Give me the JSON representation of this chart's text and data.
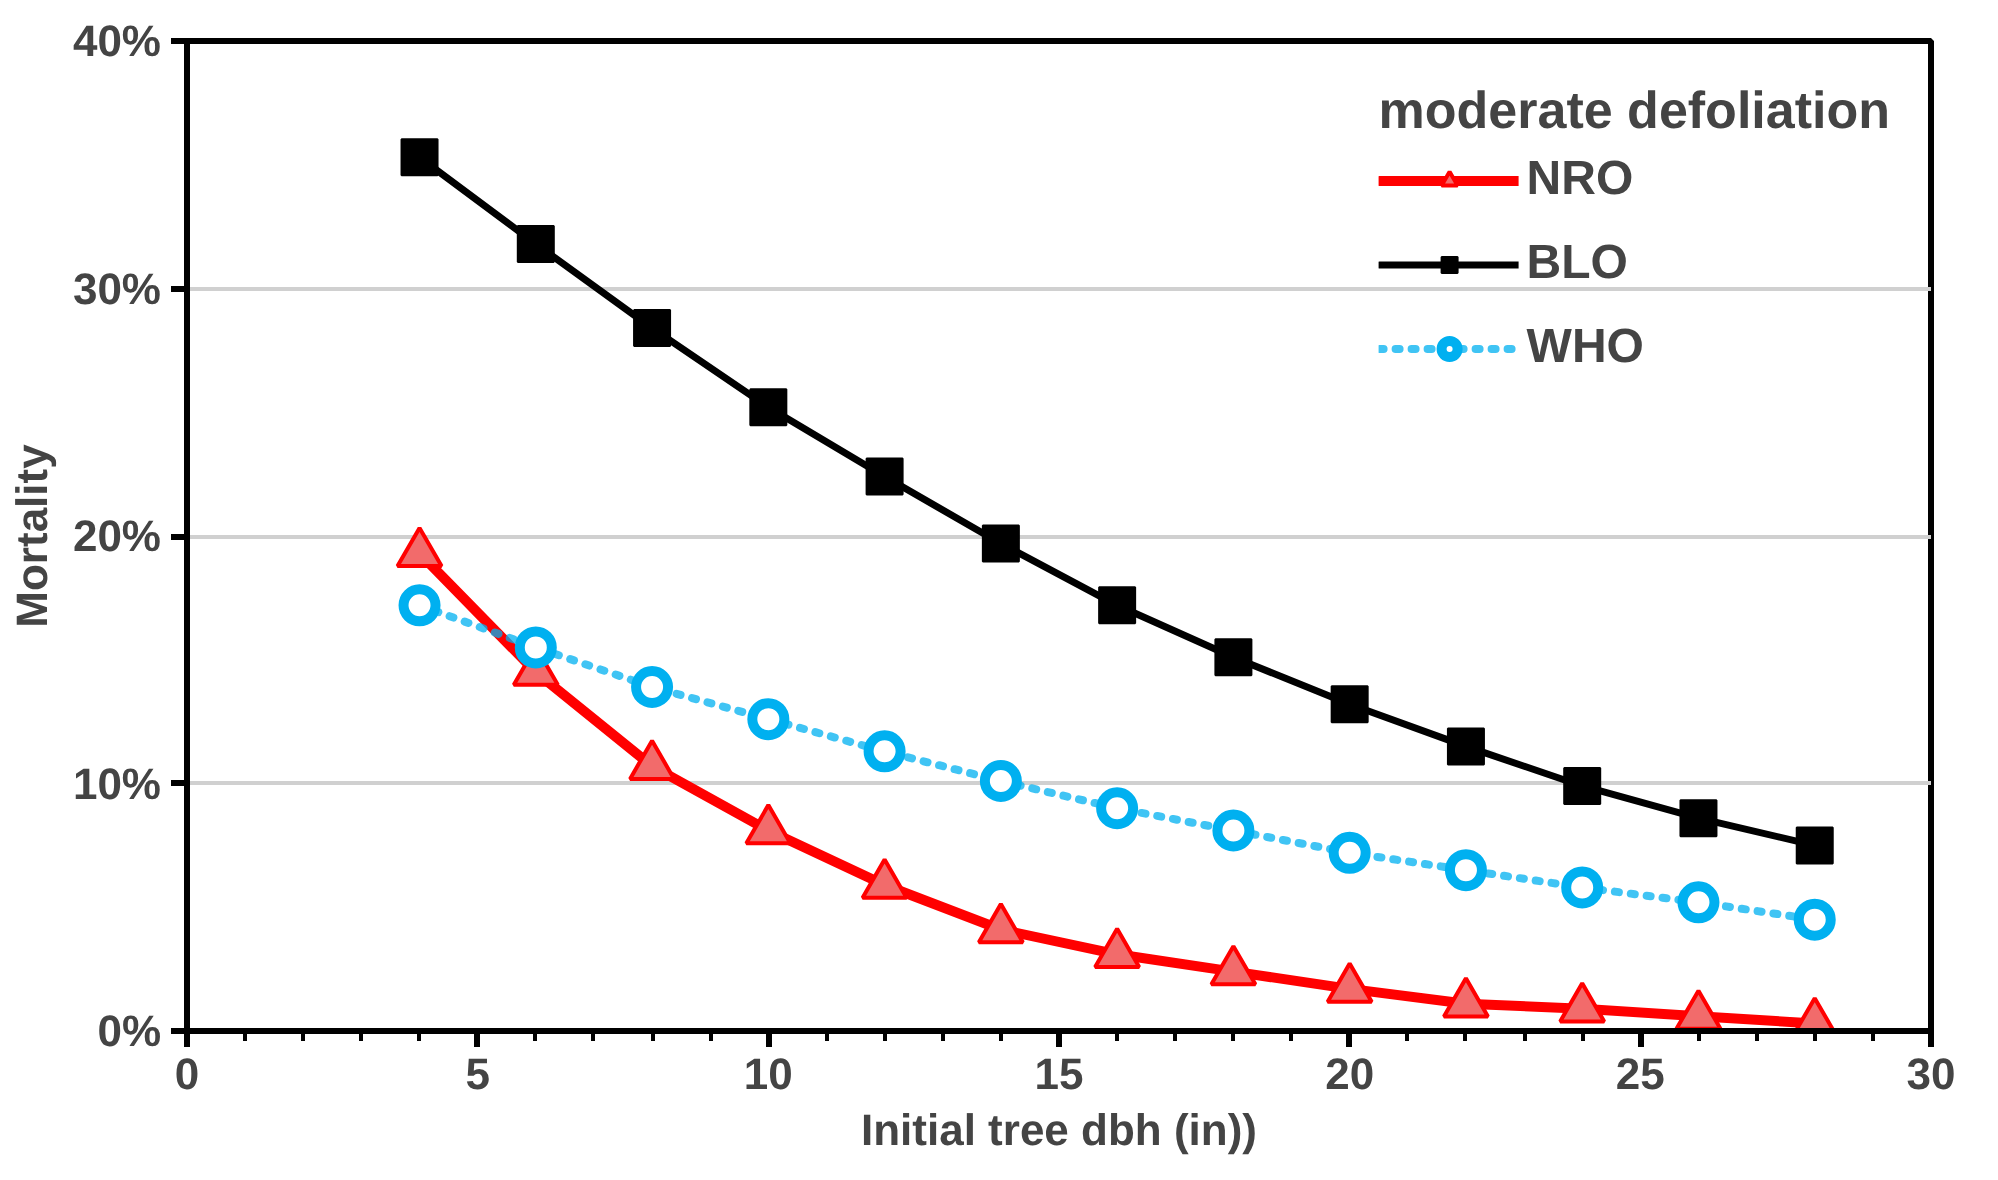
{
  "chart_data": {
    "type": "line",
    "xlabel": "Initial tree dbh (in))",
    "ylabel": "Mortality",
    "legend_title": "moderate defoliation",
    "legend": "top right",
    "grid": "y",
    "x": [
      4,
      6,
      8,
      10,
      12,
      14,
      16,
      18,
      20,
      22,
      24,
      26,
      28
    ],
    "xlim": [
      0,
      30
    ],
    "xticks": [
      0,
      5,
      10,
      15,
      20,
      25,
      30
    ],
    "ylim": [
      0,
      40
    ],
    "yticks": [
      {
        "value": 0,
        "label": "0%"
      },
      {
        "value": 10,
        "label": "10%"
      },
      {
        "value": 20,
        "label": "20%"
      },
      {
        "value": 30,
        "label": "30%"
      },
      {
        "value": 40,
        "label": "40%"
      }
    ],
    "series": [
      {
        "name": "NRO",
        "color": "#ff0000",
        "marker": "triangle",
        "line_style": "solid",
        "values": [
          19.3,
          14.5,
          10.7,
          8.1,
          5.9,
          4.1,
          3.1,
          2.4,
          1.7,
          1.1,
          0.9,
          0.6,
          0.3
        ]
      },
      {
        "name": "BLO",
        "color": "#000000",
        "marker": "square",
        "line_style": "solid",
        "values": [
          35.3,
          31.8,
          28.4,
          25.2,
          22.4,
          19.7,
          17.2,
          15.1,
          13.2,
          11.5,
          9.9,
          8.6,
          7.5
        ]
      },
      {
        "name": "WHO",
        "color": "#00b0f0",
        "marker": "circle",
        "line_style": "dotted",
        "values": [
          17.2,
          15.5,
          13.9,
          12.6,
          11.3,
          10.1,
          9.0,
          8.1,
          7.2,
          6.5,
          5.8,
          5.2,
          4.5
        ]
      }
    ]
  }
}
